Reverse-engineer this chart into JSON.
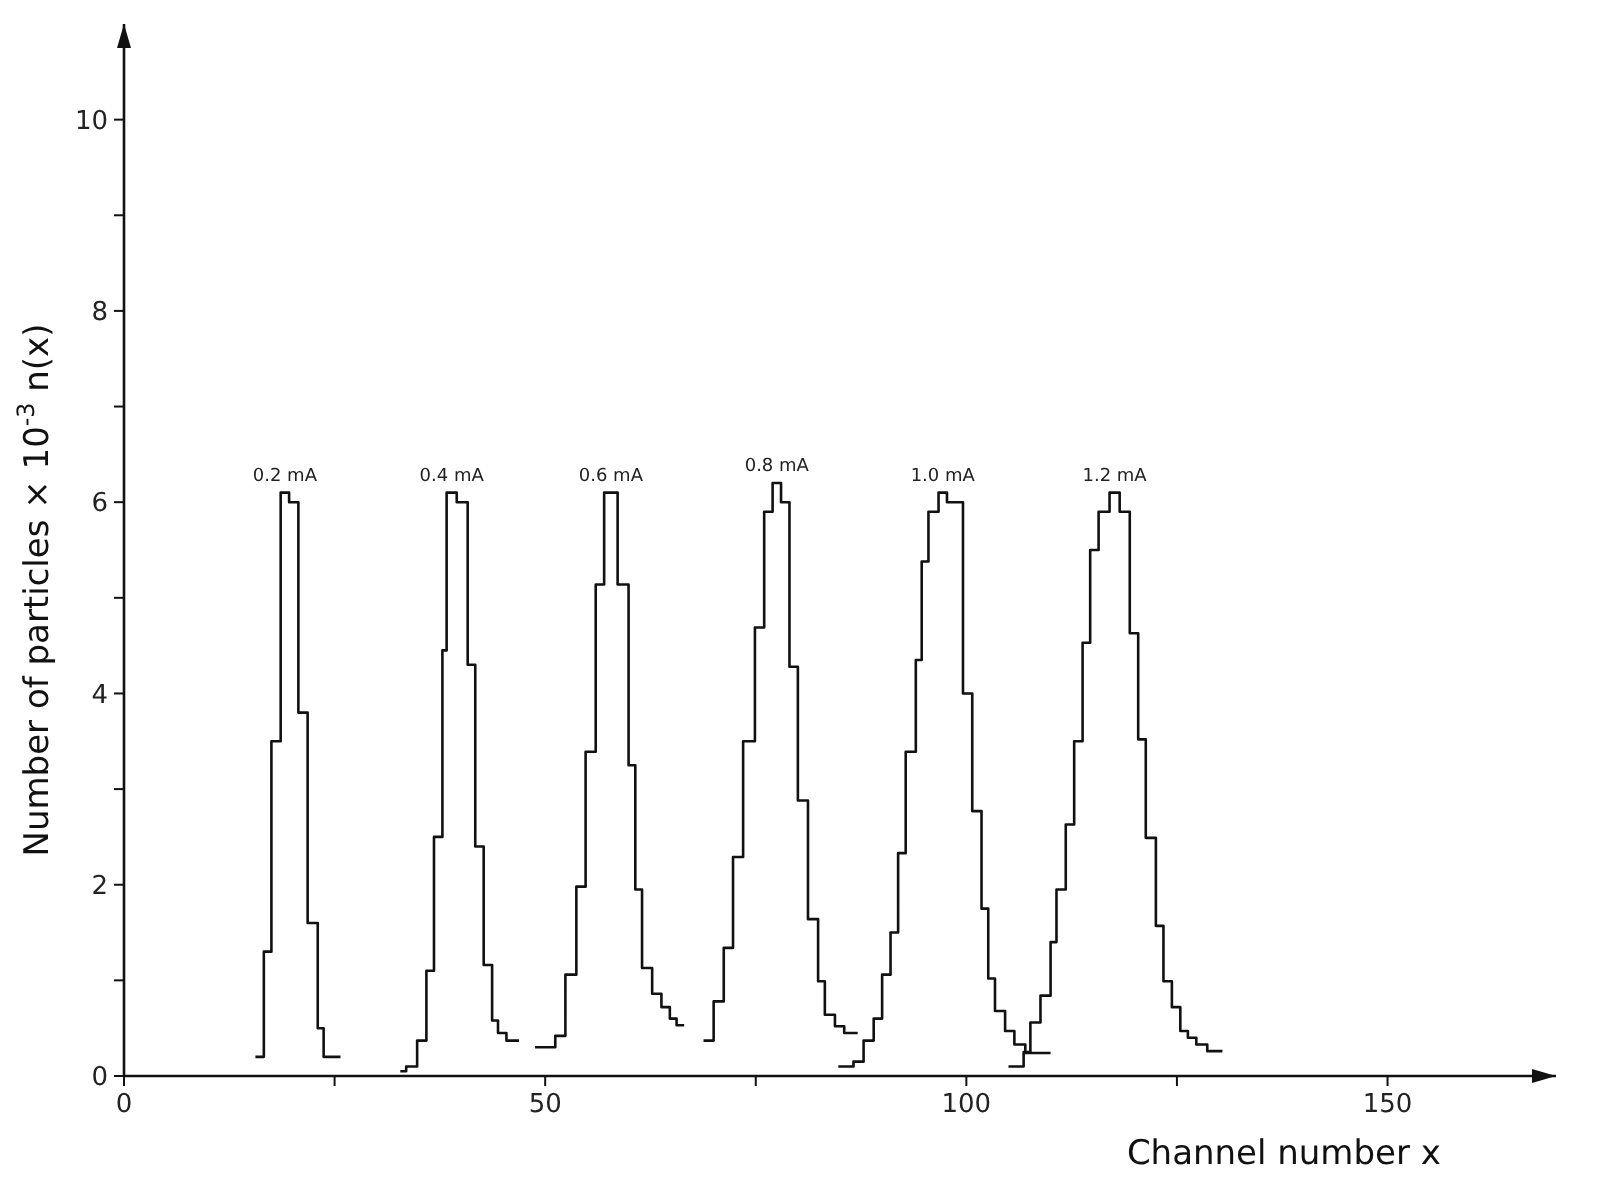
{
  "chart_data": {
    "type": "step",
    "xlabel": "Channel number x",
    "ylabel": "Number of particles  × 10$^{-3}$  n(x)",
    "xlim": [
      0,
      170
    ],
    "xticks": [
      0,
      {
        "value": 25,
        "label": null
      },
      50,
      {
        "value": 75,
        "label": null
      },
      100,
      {
        "value": 125,
        "label": null
      },
      150
    ],
    "ylim": [
      0,
      11
    ],
    "yticks": [
      0,
      {
        "value": 1,
        "label": null
      },
      2,
      {
        "value": 3,
        "label": null
      },
      4,
      {
        "value": 5,
        "label": null
      },
      6,
      {
        "value": 7,
        "label": null
      },
      8,
      {
        "value": 9,
        "label": null
      },
      10
    ],
    "grid": false,
    "marker": "none",
    "line_style": "solid",
    "series": [
      {
        "name": "0.2 mA",
        "color": "#111111",
        "x": [
          15.6,
          16.6,
          17.5,
          18.6,
          19.6,
          20.7,
          21.8,
          23,
          23.7,
          25.7
        ],
        "values": [
          0.2,
          1.3,
          3.5,
          6.1,
          6.0,
          3.8,
          1.6,
          0.5,
          0.2,
          0.2
        ]
      },
      {
        "name": "0.4 mA",
        "color": "#111111",
        "x": [
          32.8,
          33.5,
          34.8,
          35.9,
          36.8,
          37.8,
          38.3,
          39.5,
          40.8,
          41.7,
          42.7,
          43.7,
          44.4,
          45.4,
          46.9
        ],
        "values": [
          0.05,
          0.1,
          0.37,
          1.1,
          2.5,
          4.45,
          6.1,
          6.0,
          4.3,
          2.4,
          1.16,
          0.58,
          0.45,
          0.37,
          0.37
        ]
      },
      {
        "name": "0.6 mA",
        "color": "#111111",
        "x": [
          48.8,
          51.2,
          52.4,
          53.7,
          54.8,
          56,
          57,
          58.6,
          59.9,
          60.7,
          61.5,
          62.7,
          63.8,
          64.8,
          65.6,
          66.5
        ],
        "values": [
          0.3,
          0.42,
          1.06,
          1.98,
          3.39,
          5.14,
          6.1,
          5.14,
          3.25,
          1.95,
          1.13,
          0.86,
          0.72,
          0.6,
          0.53,
          0.53
        ]
      },
      {
        "name": "0.8 mA",
        "color": "#111111",
        "x": [
          68.8,
          70,
          71.2,
          72.3,
          73.5,
          74.9,
          76,
          77,
          78,
          79,
          80,
          81.2,
          82.4,
          83.2,
          84.4,
          85.5,
          87.1
        ],
        "values": [
          0.37,
          0.78,
          1.34,
          2.29,
          3.5,
          4.69,
          5.9,
          6.2,
          6.0,
          4.28,
          2.88,
          1.64,
          0.99,
          0.64,
          0.52,
          0.45,
          0.45
        ]
      },
      {
        "name": "1.0 mA",
        "color": "#111111",
        "x": [
          84.8,
          86.6,
          87.8,
          89,
          90,
          91,
          91.9,
          92.8,
          94,
          94.7,
          95.5,
          96.7,
          97.7,
          99.6,
          100.7,
          101.8,
          102.6,
          103.4,
          104.6,
          105.7,
          107,
          110
        ],
        "values": [
          0.1,
          0.15,
          0.37,
          0.6,
          1.06,
          1.5,
          2.33,
          3.39,
          4.35,
          5.38,
          5.9,
          6.1,
          6.0,
          4.0,
          2.77,
          1.75,
          1.02,
          0.68,
          0.47,
          0.33,
          0.24,
          0.24
        ]
      },
      {
        "name": "1.2 mA",
        "color": "#111111",
        "x": [
          105,
          106.8,
          107.6,
          108.8,
          110,
          110.7,
          111.8,
          112.8,
          113.8,
          114.7,
          115.7,
          117,
          118.2,
          119.4,
          120.4,
          121.3,
          122.5,
          123.4,
          124.4,
          125.4,
          126.3,
          127.3,
          128.6,
          130.4
        ],
        "values": [
          0.1,
          0.25,
          0.56,
          0.84,
          1.4,
          1.95,
          2.63,
          3.5,
          4.53,
          5.5,
          5.9,
          6.1,
          5.9,
          4.63,
          3.52,
          2.49,
          1.57,
          0.99,
          0.72,
          0.47,
          0.4,
          0.33,
          0.26,
          0.26
        ]
      }
    ]
  }
}
